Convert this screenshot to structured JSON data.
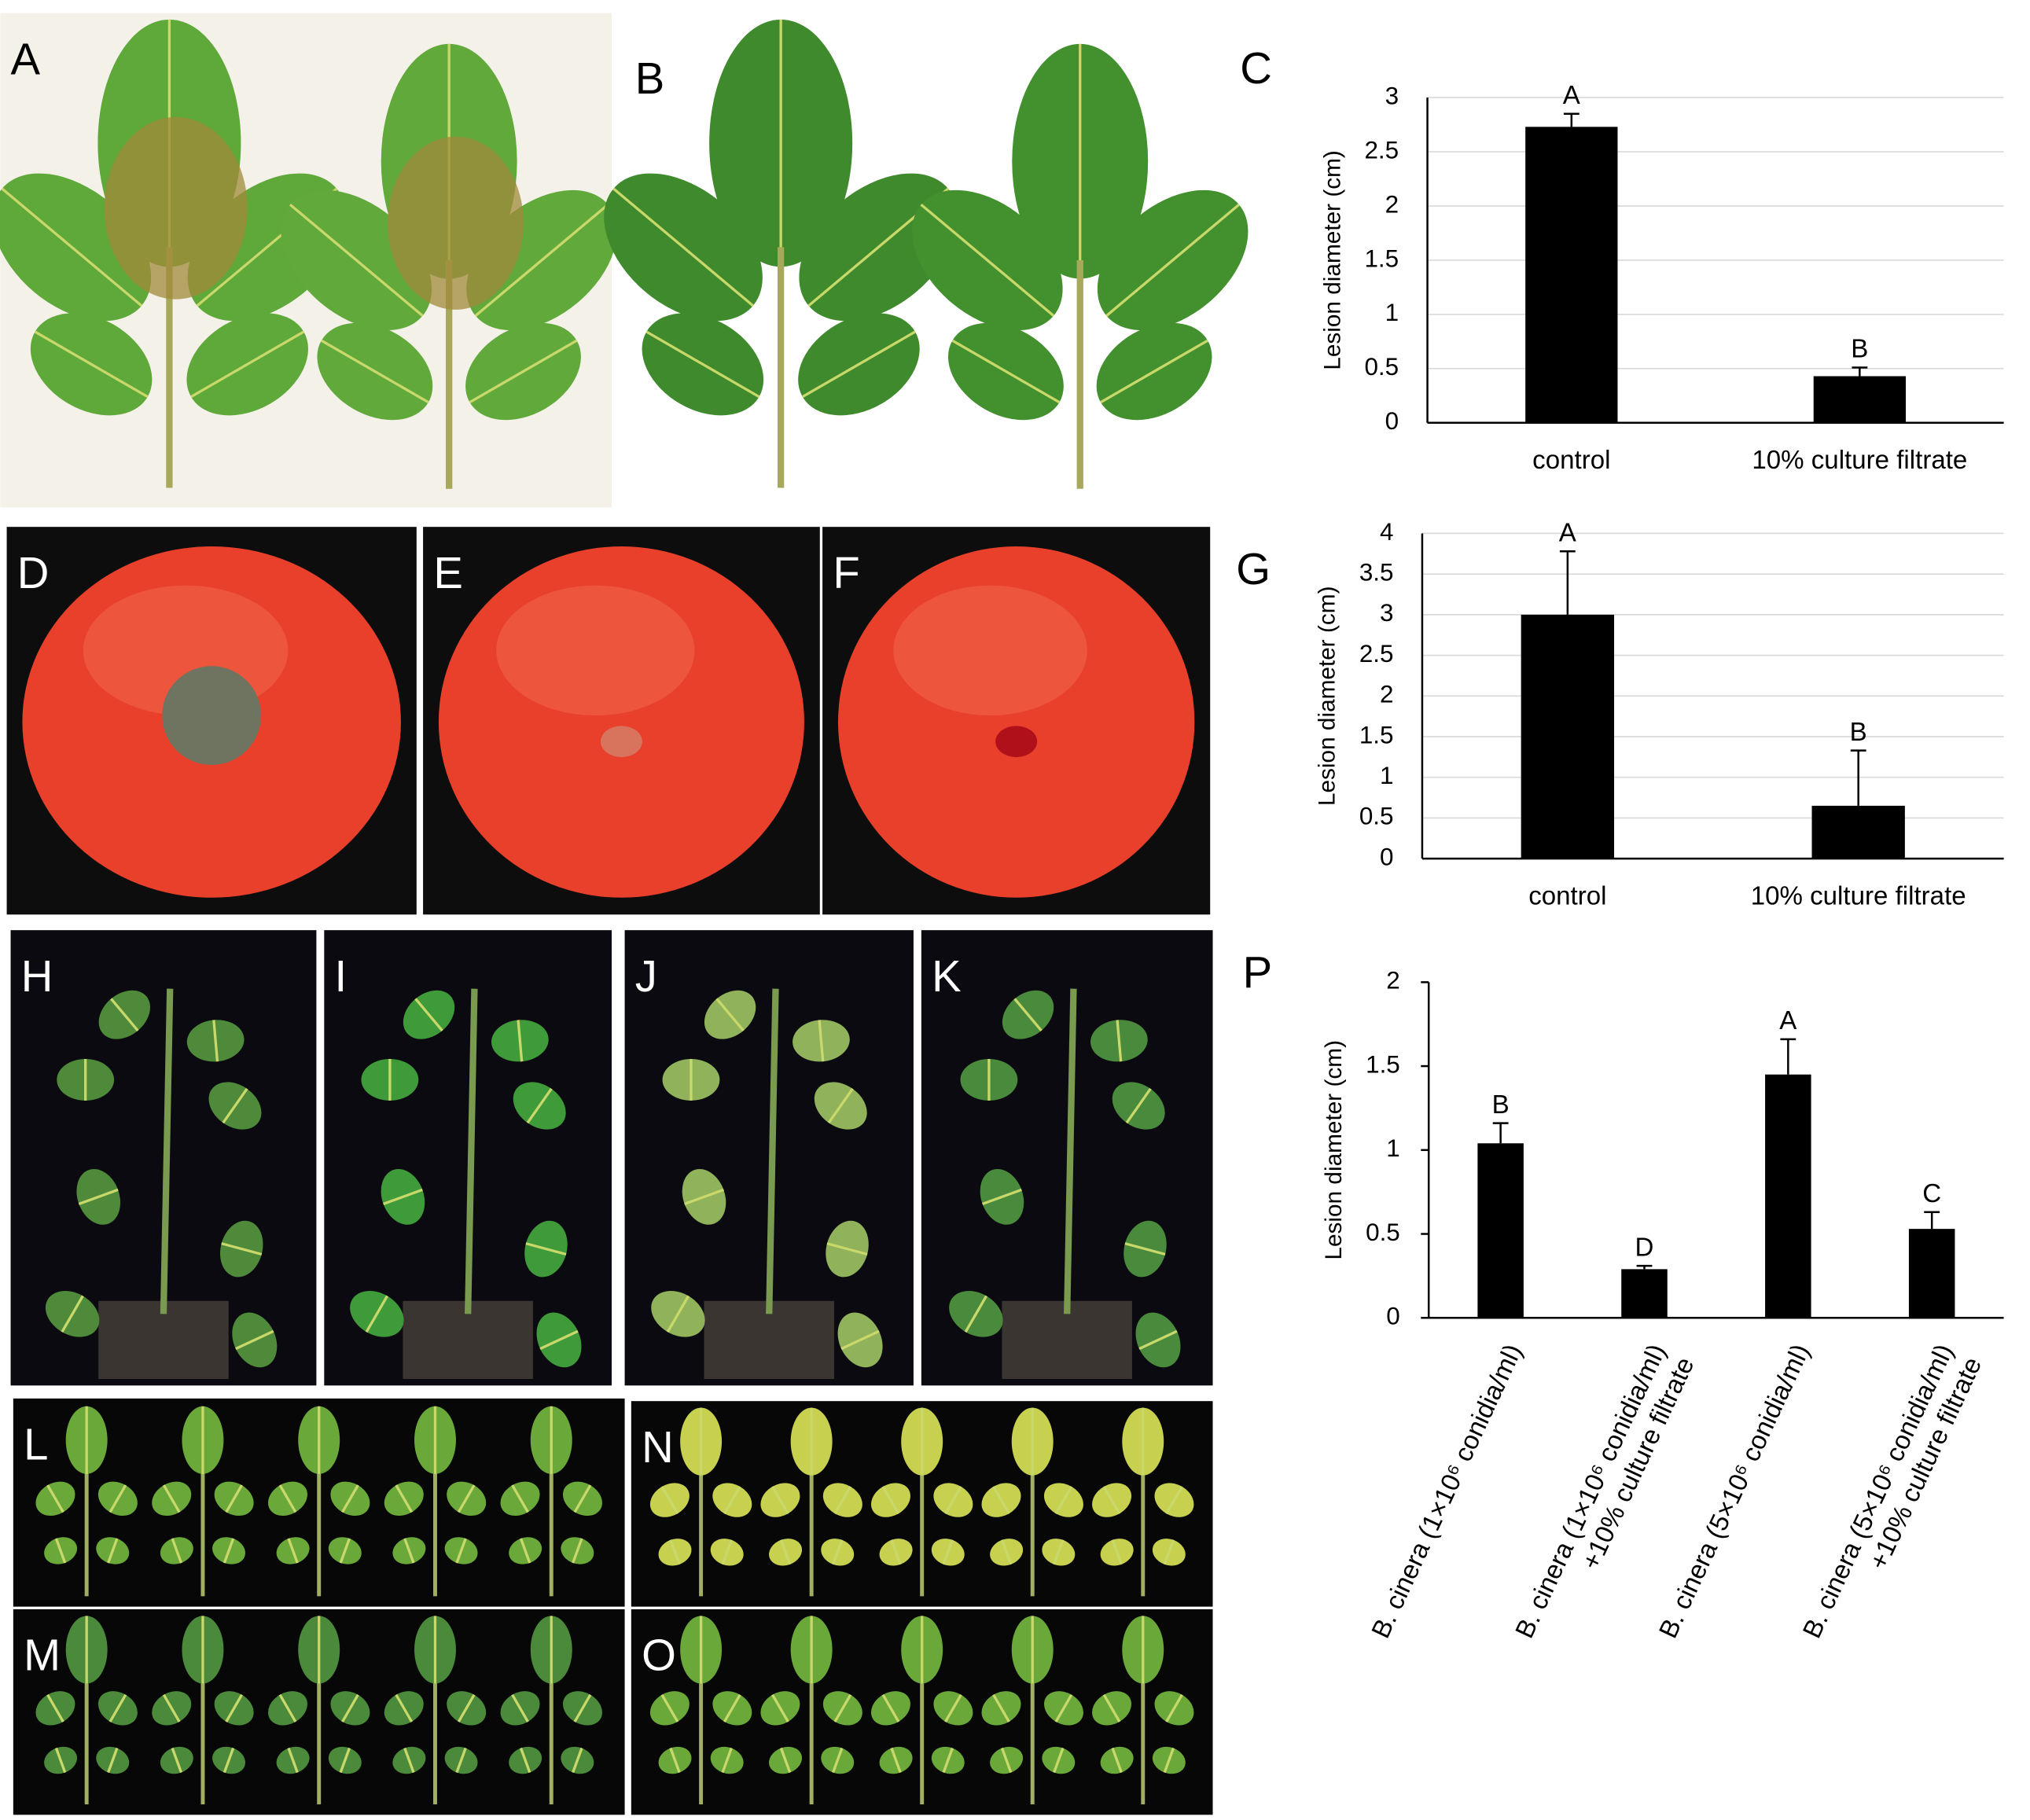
{
  "photo_panels": [
    "A",
    "B",
    "D",
    "E",
    "F",
    "H",
    "I",
    "J",
    "K",
    "L",
    "M",
    "N",
    "O"
  ],
  "chart_data": [
    {
      "type": "bar",
      "panel": "C",
      "y_label": "Lesion diameter (cm)",
      "categories": [
        "control",
        "10% culture filtrate"
      ],
      "values": [
        2.73,
        0.43
      ],
      "errors": [
        0.12,
        0.08
      ],
      "annotations": [
        "A",
        "B"
      ],
      "color": "#000000",
      "ylim": [
        0,
        3
      ],
      "yticks": [
        0,
        0.5,
        1,
        1.5,
        2,
        2.5,
        3
      ],
      "grid": true
    },
    {
      "type": "bar",
      "panel": "G",
      "y_label": "Lesion diameter (cm)",
      "categories": [
        "control",
        "10% culture filtrate"
      ],
      "values": [
        3.0,
        0.65
      ],
      "errors": [
        0.78,
        0.68
      ],
      "annotations": [
        "A",
        "B"
      ],
      "color": "#000000",
      "ylim": [
        0,
        4
      ],
      "yticks": [
        0,
        0.5,
        1,
        1.5,
        2,
        2.5,
        3,
        3.5,
        4
      ],
      "grid": true
    },
    {
      "type": "bar",
      "panel": "P",
      "y_label": "Lesion diameter (cm)",
      "categories": [
        [
          "B. cinera  (1×10⁶ conidia/ml)"
        ],
        [
          "B. cinera (1×10⁶ conidia/ml)",
          "+10% culture filtrate"
        ],
        [
          "B. cinera (5×10⁶ conidia/ml)"
        ],
        [
          "B. cinera (5×10⁶ conidia/ml)",
          "+10% culture filtrate"
        ]
      ],
      "values": [
        1.04,
        0.29,
        1.45,
        0.53
      ],
      "errors": [
        0.12,
        0.02,
        0.21,
        0.1
      ],
      "annotations": [
        "B",
        "D",
        "A",
        "C"
      ],
      "color": "#000000",
      "ylim": [
        0,
        2
      ],
      "yticks": [
        0,
        0.5,
        1,
        1.5,
        2
      ],
      "grid": false
    }
  ]
}
